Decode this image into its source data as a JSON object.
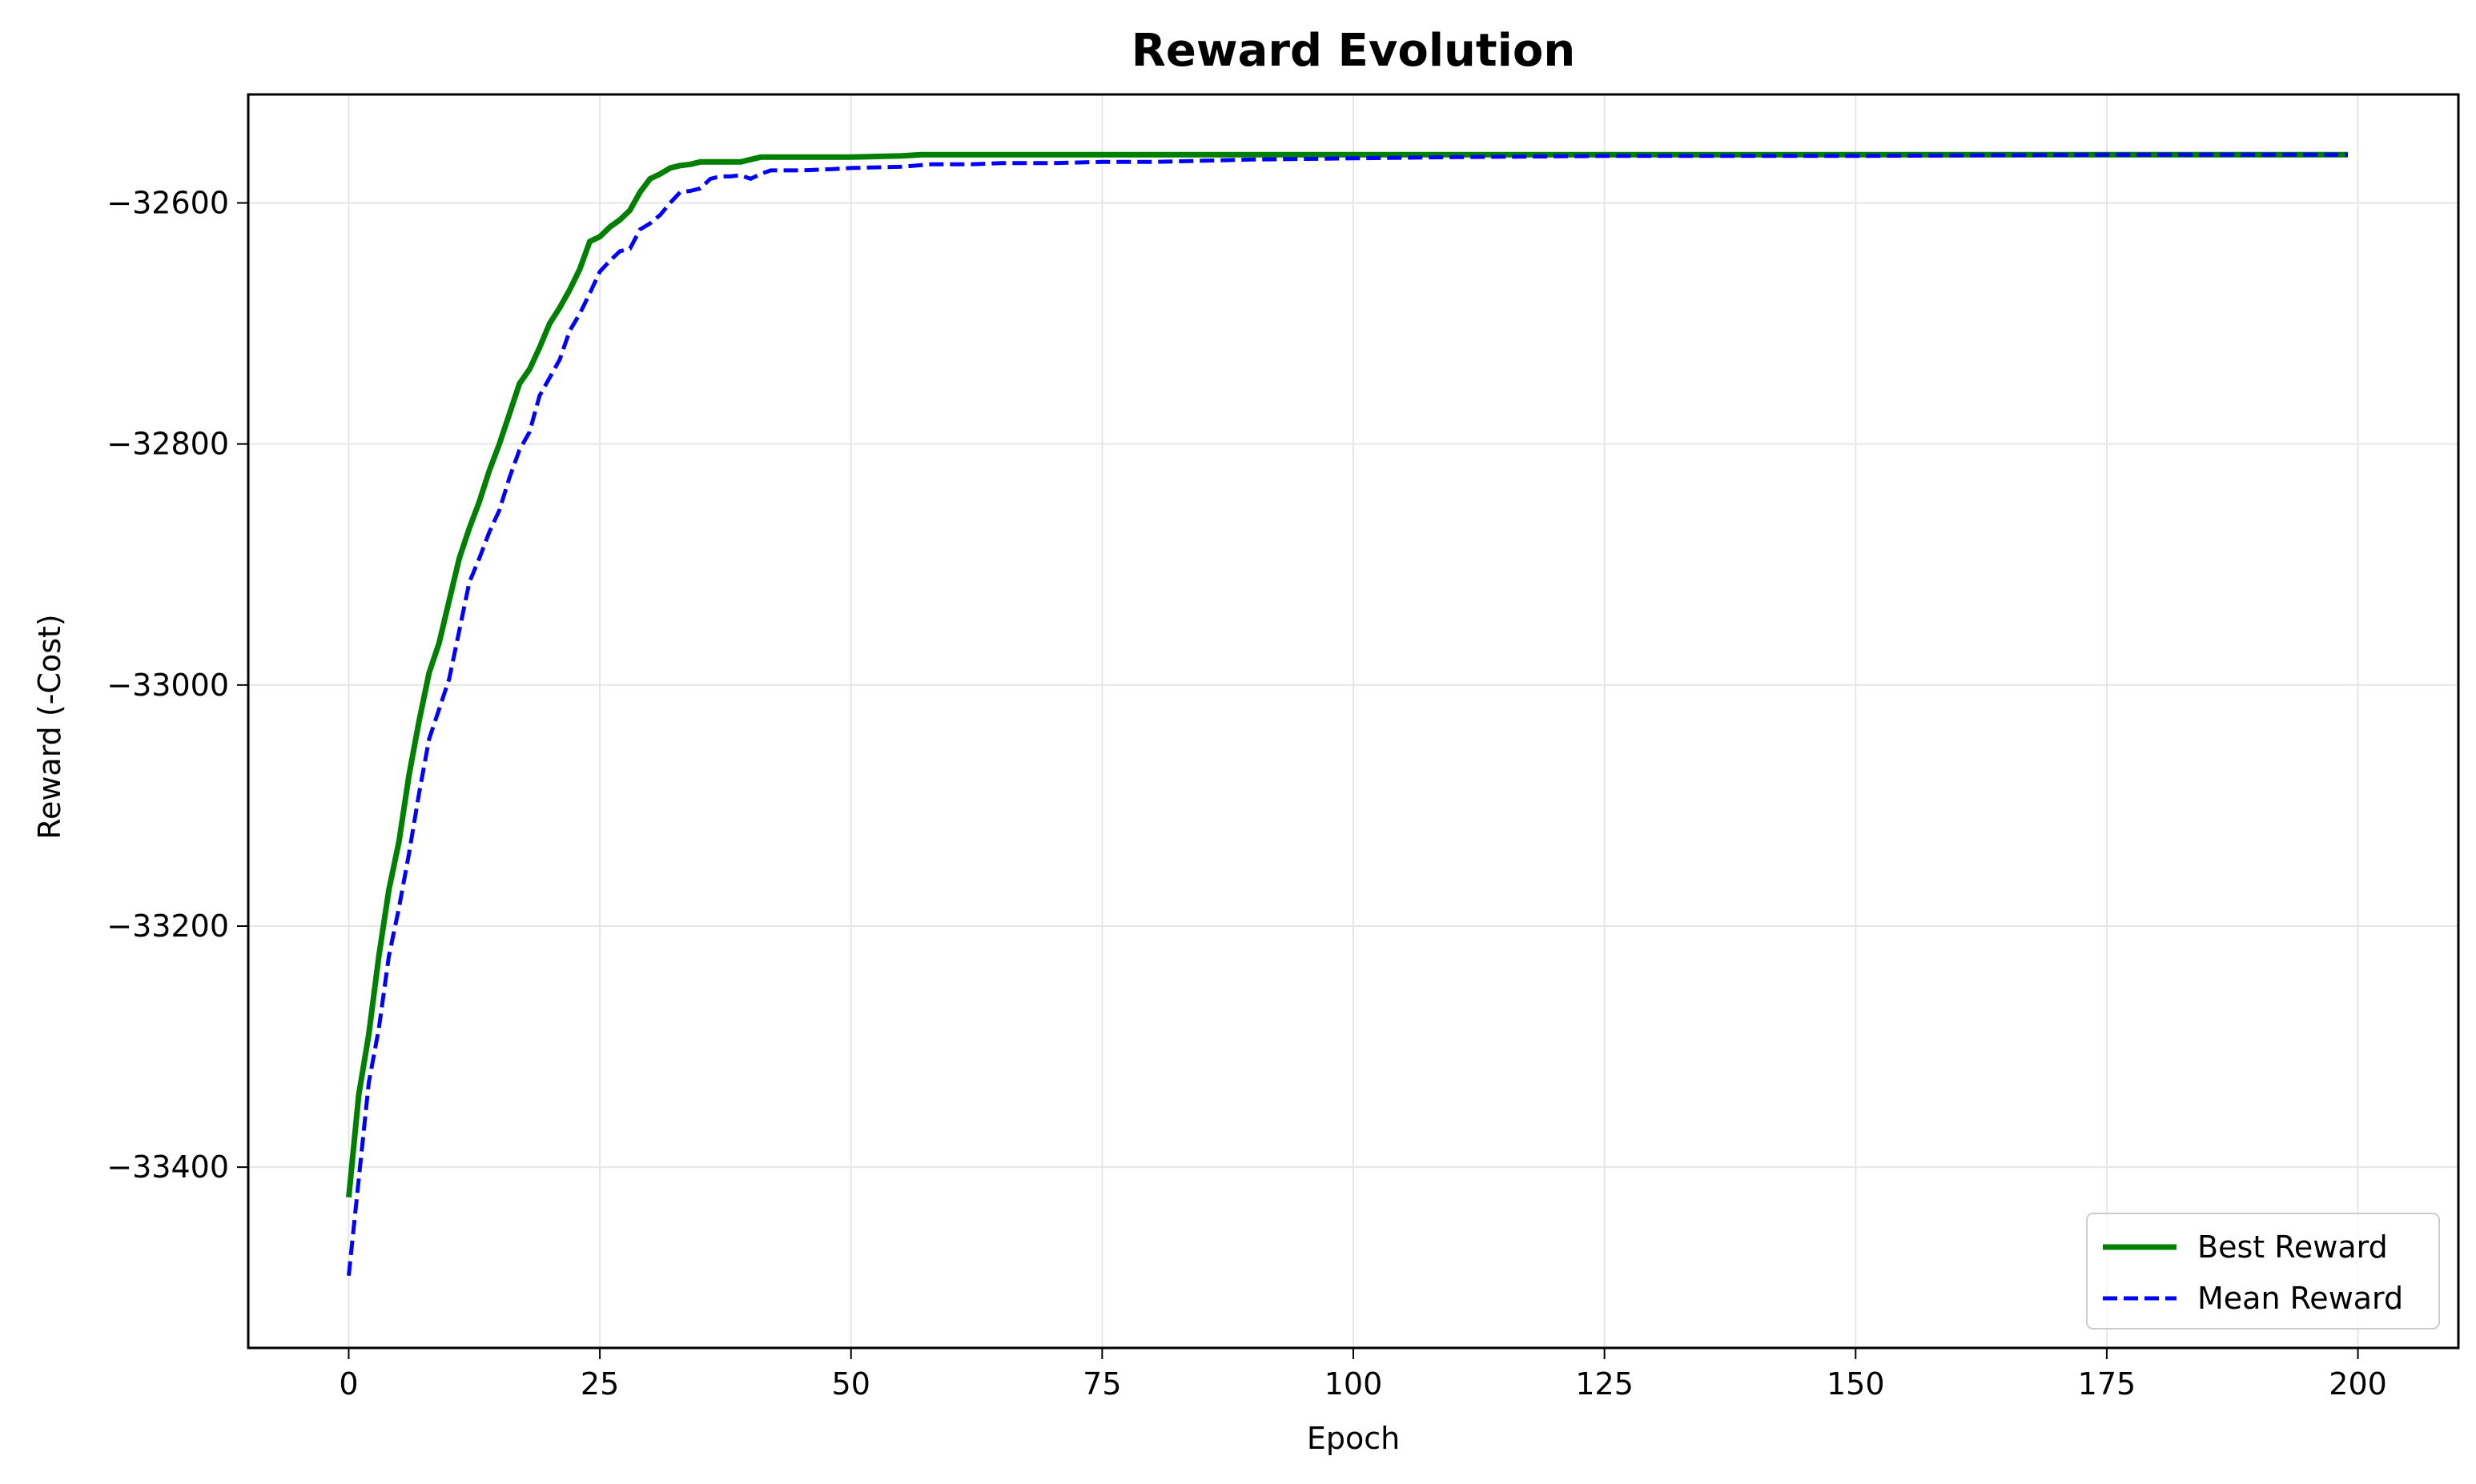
{
  "chart_data": {
    "type": "line",
    "title": "Reward Evolution",
    "xlabel": "Epoch",
    "ylabel": "Reward (-Cost)",
    "xlim": [
      -10,
      210
    ],
    "ylim": [
      -33550,
      -32510
    ],
    "xticks": [
      0,
      25,
      50,
      75,
      100,
      125,
      150,
      175,
      200
    ],
    "yticks": [
      -33400,
      -33200,
      -33000,
      -32800,
      -32600
    ],
    "ytick_labels": [
      "−33400",
      "−33200",
      "−33000",
      "−32800",
      "−32600"
    ],
    "grid": true,
    "legend_position": "lower-right",
    "series": [
      {
        "name": "Best Reward",
        "color": "#008000",
        "style": "solid",
        "points": [
          [
            0,
            -33425
          ],
          [
            1,
            -33340
          ],
          [
            2,
            -33290
          ],
          [
            3,
            -33225
          ],
          [
            4,
            -33170
          ],
          [
            5,
            -33130
          ],
          [
            6,
            -33075
          ],
          [
            7,
            -33030
          ],
          [
            8,
            -32990
          ],
          [
            9,
            -32965
          ],
          [
            10,
            -32930
          ],
          [
            11,
            -32895
          ],
          [
            12,
            -32870
          ],
          [
            13,
            -32848
          ],
          [
            14,
            -32822
          ],
          [
            15,
            -32800
          ],
          [
            16,
            -32775
          ],
          [
            17,
            -32750
          ],
          [
            18,
            -32738
          ],
          [
            19,
            -32720
          ],
          [
            20,
            -32700
          ],
          [
            21,
            -32687
          ],
          [
            22,
            -32672
          ],
          [
            23,
            -32655
          ],
          [
            24,
            -32632
          ],
          [
            25,
            -32628
          ],
          [
            26,
            -32620
          ],
          [
            27,
            -32614
          ],
          [
            28,
            -32606
          ],
          [
            29,
            -32591
          ],
          [
            30,
            -32580
          ],
          [
            31,
            -32576
          ],
          [
            32,
            -32571
          ],
          [
            33,
            -32569
          ],
          [
            34,
            -32568
          ],
          [
            35,
            -32566
          ],
          [
            36,
            -32566
          ],
          [
            37,
            -32566
          ],
          [
            38,
            -32566
          ],
          [
            39,
            -32566
          ],
          [
            40,
            -32564
          ],
          [
            41,
            -32562
          ],
          [
            42,
            -32562
          ],
          [
            45,
            -32562
          ],
          [
            50,
            -32562
          ],
          [
            55,
            -32561
          ],
          [
            57,
            -32560
          ],
          [
            60,
            -32560
          ],
          [
            70,
            -32560
          ],
          [
            80,
            -32560
          ],
          [
            100,
            -32560
          ],
          [
            125,
            -32560
          ],
          [
            150,
            -32560
          ],
          [
            175,
            -32560
          ],
          [
            199,
            -32560
          ]
        ]
      },
      {
        "name": "Mean Reward",
        "color": "#0000ff",
        "style": "dashed",
        "points": [
          [
            0,
            -33490
          ],
          [
            1,
            -33410
          ],
          [
            2,
            -33330
          ],
          [
            3,
            -33285
          ],
          [
            4,
            -33225
          ],
          [
            5,
            -33185
          ],
          [
            6,
            -33140
          ],
          [
            7,
            -33090
          ],
          [
            8,
            -33045
          ],
          [
            9,
            -33020
          ],
          [
            10,
            -32995
          ],
          [
            11,
            -32955
          ],
          [
            12,
            -32915
          ],
          [
            13,
            -32895
          ],
          [
            14,
            -32873
          ],
          [
            15,
            -32855
          ],
          [
            16,
            -32828
          ],
          [
            17,
            -32805
          ],
          [
            18,
            -32790
          ],
          [
            19,
            -32760
          ],
          [
            20,
            -32745
          ],
          [
            21,
            -32730
          ],
          [
            22,
            -32706
          ],
          [
            23,
            -32692
          ],
          [
            24,
            -32675
          ],
          [
            25,
            -32657
          ],
          [
            26,
            -32648
          ],
          [
            27,
            -32640
          ],
          [
            28,
            -32638
          ],
          [
            29,
            -32622
          ],
          [
            30,
            -32617
          ],
          [
            31,
            -32610
          ],
          [
            32,
            -32600
          ],
          [
            33,
            -32591
          ],
          [
            34,
            -32590
          ],
          [
            35,
            -32588
          ],
          [
            36,
            -32580
          ],
          [
            37,
            -32578
          ],
          [
            38,
            -32578
          ],
          [
            39,
            -32577
          ],
          [
            40,
            -32580
          ],
          [
            41,
            -32576
          ],
          [
            42,
            -32573
          ],
          [
            43,
            -32573
          ],
          [
            45,
            -32573
          ],
          [
            48,
            -32572
          ],
          [
            50,
            -32571
          ],
          [
            55,
            -32570
          ],
          [
            58,
            -32568
          ],
          [
            60,
            -32568
          ],
          [
            62,
            -32568
          ],
          [
            65,
            -32567
          ],
          [
            70,
            -32567
          ],
          [
            75,
            -32566
          ],
          [
            80,
            -32566
          ],
          [
            85,
            -32565
          ],
          [
            90,
            -32564
          ],
          [
            100,
            -32563
          ],
          [
            110,
            -32562
          ],
          [
            125,
            -32561
          ],
          [
            150,
            -32561
          ],
          [
            175,
            -32560
          ],
          [
            199,
            -32560
          ]
        ]
      }
    ]
  }
}
